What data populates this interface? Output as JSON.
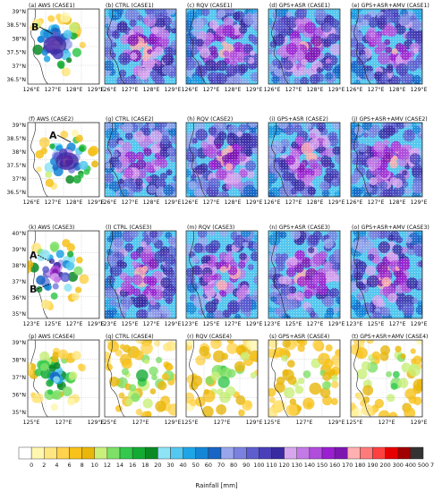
{
  "rows": [
    {
      "lat_ticks": [
        "39°N",
        "38.5°N",
        "38°N",
        "37.5°N",
        "37°N",
        "36.5°N"
      ],
      "lon_ticks": [
        "126°E",
        "127°E",
        "128°E",
        "129°E"
      ],
      "panels": [
        {
          "label": "(a) AWS (CASE1)",
          "kind": "aws"
        },
        {
          "label": "(b) CTRL (CASE1)",
          "kind": "model"
        },
        {
          "label": "(c) RQV (CASE1)",
          "kind": "model"
        },
        {
          "label": "(d) GPS+ASR (CASE1)",
          "kind": "model"
        },
        {
          "label": "(e) GPS+ASR+AMV (CASE1)",
          "kind": "model"
        }
      ],
      "annotations": [
        {
          "panel": 0,
          "text": "B"
        }
      ]
    },
    {
      "lat_ticks": [
        "39°N",
        "38.5°N",
        "38°N",
        "37.5°N",
        "37°N",
        "36.5°N"
      ],
      "lon_ticks": [
        "126°E",
        "127°E",
        "128°E",
        "129°E"
      ],
      "panels": [
        {
          "label": "(f) AWS (CASE2)",
          "kind": "aws"
        },
        {
          "label": "(g) CTRL (CASE2)",
          "kind": "model"
        },
        {
          "label": "(h) RQV (CASE2)",
          "kind": "model"
        },
        {
          "label": "(i) GPS+ASR (CASE2)",
          "kind": "model"
        },
        {
          "label": "(j) GPS+ASR+AMV (CASE2)",
          "kind": "model"
        }
      ],
      "annotations": [
        {
          "panel": 0,
          "text": "A"
        }
      ]
    },
    {
      "lat_ticks": [
        "40°N",
        "39°N",
        "38°N",
        "37°N",
        "36°N",
        "35°N"
      ],
      "lon_ticks": [
        "123°E",
        "125°E",
        "127°E",
        "129°E"
      ],
      "panels": [
        {
          "label": "(k) AWS (CASE3)",
          "kind": "aws"
        },
        {
          "label": "(l) CTRL (CASE3)",
          "kind": "model"
        },
        {
          "label": "(m) RQV (CASE3)",
          "kind": "model"
        },
        {
          "label": "(n) GPS+ASR (CASE3)",
          "kind": "model"
        },
        {
          "label": "(o) GPS+ASR+AMV (CASE3)",
          "kind": "model"
        }
      ],
      "annotations": [
        {
          "panel": 0,
          "text": "A"
        },
        {
          "panel": 0,
          "text": "B"
        }
      ]
    },
    {
      "lat_ticks": [
        "39°N",
        "38°N",
        "37°N",
        "36°N",
        "35°N"
      ],
      "lon_ticks": [
        "125°E",
        "127°E",
        "129°E"
      ],
      "panels": [
        {
          "label": "(p) AWS (CASE4)",
          "kind": "aws"
        },
        {
          "label": "(q) CTRL (CASE4)",
          "kind": "model"
        },
        {
          "label": "(r) RQV (CASE4)",
          "kind": "model"
        },
        {
          "label": "(s) GPS+ASR (CASE4)",
          "kind": "model"
        },
        {
          "label": "(t) GPS+ASR+AMV (CASE4)",
          "kind": "model"
        }
      ],
      "annotations": []
    }
  ],
  "colorbar": {
    "title": "Rainfall [mm]",
    "labels": [
      "0",
      "2",
      "4",
      "6",
      "8",
      "10",
      "12",
      "14",
      "16",
      "18",
      "20",
      "30",
      "40",
      "50",
      "60",
      "70",
      "80",
      "90",
      "100",
      "110",
      "120",
      "130",
      "140",
      "150",
      "160",
      "170",
      "180",
      "190",
      "200",
      "300",
      "400",
      "500",
      "700"
    ],
    "colors": [
      "#ffffff",
      "#fff7b0",
      "#ffe680",
      "#ffd34d",
      "#f7c21a",
      "#e9b60a",
      "#c9f07a",
      "#7ee067",
      "#33c94c",
      "#13ab33",
      "#0a8a25",
      "#8ee4f5",
      "#55c8ef",
      "#1fa5e6",
      "#1585d6",
      "#1765c4",
      "#9aa6ec",
      "#7a82de",
      "#5f5ecf",
      "#4a3fb8",
      "#3a2aa0",
      "#d8a6ef",
      "#c47ae6",
      "#b04ddb",
      "#9a1fd0",
      "#7d16b0",
      "#ffb0b0",
      "#ff7a7a",
      "#ff4040",
      "#e60000",
      "#a00000",
      "#333333"
    ]
  }
}
